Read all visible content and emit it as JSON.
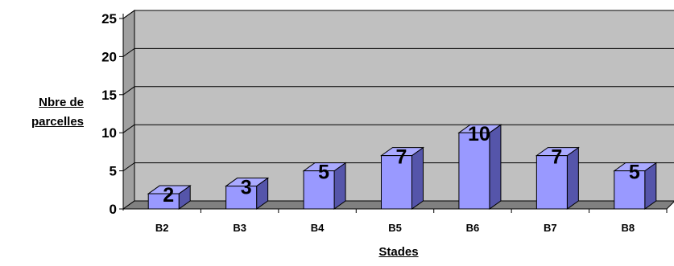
{
  "chart_data": {
    "type": "bar",
    "categories": [
      "B2",
      "B3",
      "B4",
      "B5",
      "B6",
      "B7",
      "B8"
    ],
    "values": [
      2,
      3,
      5,
      7,
      10,
      7,
      5
    ],
    "xlabel": "Stades",
    "ylabel_lines": [
      "Nbre de",
      "parcelles"
    ],
    "ylim": [
      0,
      25
    ],
    "yticks": [
      0,
      5,
      10,
      15,
      20,
      25
    ],
    "grid": true,
    "style": "3d",
    "colors": {
      "bar_front": "#9999ff",
      "bar_top": "#aaaaff",
      "bar_side": "#5555aa",
      "wall": "#c0c0c0",
      "floor": "#808080"
    }
  }
}
